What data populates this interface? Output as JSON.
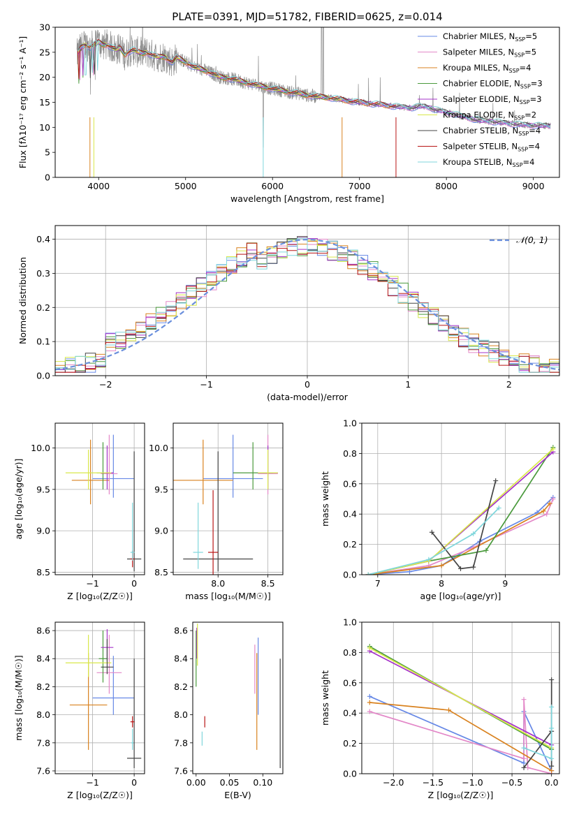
{
  "figure": {
    "title": "PLATE=0391, MJD=51782, FIBERID=0625, z=0.014"
  },
  "chart_data": [
    {
      "id": "spectrum",
      "type": "line",
      "xlabel": "wavelength [Angstrom, rest frame]",
      "ylabel": "Flux [fλ10⁻¹⁷ erg cm⁻² s⁻¹ A⁻¹]",
      "xlim": [
        3500,
        9300
      ],
      "ylim": [
        0,
        30
      ],
      "xticks": [
        "4000",
        "5000",
        "6000",
        "7000",
        "8000",
        "9000"
      ],
      "yticks": [
        "0",
        "5",
        "10",
        "15",
        "20",
        "25",
        "30"
      ],
      "grid": false,
      "legend_position": "top-right",
      "legend": [
        {
          "label": "Chabrier MILES, N",
          "sub": "SSP",
          "tail": "=5",
          "color": "#6688e6"
        },
        {
          "label": "Salpeter MILES, N",
          "sub": "SSP",
          "tail": "=5",
          "color": "#e388c8"
        },
        {
          "label": "Kroupa MILES, N",
          "sub": "SSP",
          "tail": "=4",
          "color": "#d9821f"
        },
        {
          "label": "Chabrier ELODIE, N",
          "sub": "SSP",
          "tail": "=3",
          "color": "#4a9a3c"
        },
        {
          "label": "Salpeter ELODIE, N",
          "sub": "SSP",
          "tail": "=3",
          "color": "#a533c8"
        },
        {
          "label": "Kroupa ELODIE, N",
          "sub": "SSP",
          "tail": "=2",
          "color": "#d9e84a"
        },
        {
          "label": "Chabrier STELIB, N",
          "sub": "SSP",
          "tail": "=4",
          "color": "#444444"
        },
        {
          "label": "Salpeter STELIB, N",
          "sub": "SSP",
          "tail": "=4",
          "color": "#b81414"
        },
        {
          "label": "Kroupa STELIB, N",
          "sub": "SSP",
          "tail": "=4",
          "color": "#7fd6dc"
        }
      ],
      "observed": {
        "color": "#8c8c8c",
        "x": [
          3750,
          3800,
          3850,
          3900,
          3950,
          4000,
          4050,
          4100,
          4150,
          4200,
          4250,
          4300,
          4350,
          4400,
          4450,
          4500,
          4550,
          4600,
          4650,
          4700,
          4750,
          4800,
          4850,
          4900,
          5000,
          5100,
          5200,
          5300,
          5400,
          5500,
          5600,
          5700,
          5800,
          5900,
          6000,
          6100,
          6200,
          6300,
          6400,
          6500,
          6600,
          6700,
          6800,
          6900,
          7000,
          7100,
          7200,
          7300,
          7400,
          7500,
          7600,
          7700,
          7800,
          7900,
          8000,
          8100,
          8200,
          8300,
          8400,
          8500,
          8600,
          8700,
          8800,
          8900,
          9000,
          9100,
          9200
        ],
        "y": [
          24.5,
          26.0,
          26.5,
          26.0,
          26.5,
          27.0,
          26.5,
          26.5,
          26.0,
          25.5,
          25.8,
          24.5,
          25.2,
          25.5,
          25.0,
          24.8,
          25.0,
          24.6,
          24.2,
          24.0,
          24.2,
          23.6,
          23.0,
          24.0,
          23.0,
          22.0,
          21.5,
          20.8,
          20.0,
          19.8,
          19.4,
          18.9,
          18.5,
          18.1,
          17.7,
          17.4,
          17.0,
          16.8,
          16.4,
          16.2,
          16.0,
          15.8,
          15.5,
          15.2,
          15.0,
          14.8,
          14.6,
          14.4,
          14.2,
          14.0,
          13.9,
          14.2,
          14.0,
          13.4,
          13.0,
          12.6,
          12.1,
          11.7,
          11.3,
          11.2,
          11.0,
          10.8,
          10.6,
          10.5,
          10.4,
          10.3,
          10.3
        ]
      }
    },
    {
      "id": "residuals",
      "type": "bar",
      "xlabel": "(data-model)/error",
      "ylabel": "Normed distribution",
      "xlim": [
        -2.5,
        2.5
      ],
      "ylim": [
        0,
        0.44
      ],
      "xticks": [
        "−2",
        "−1",
        "0",
        "1",
        "2"
      ],
      "yticks": [
        "0.0",
        "0.1",
        "0.2",
        "0.3",
        "0.4"
      ],
      "grid": true,
      "legend_position": "top-right",
      "reference_label": "𝒩(0, 1)",
      "reference_color": "#6a8fdc"
    },
    {
      "id": "age_vs_Z",
      "type": "scatter",
      "xlabel": "Z [log₁₀(Z/Z☉)]",
      "ylabel": "age  [log₁₀(age/yr)]",
      "xlim": [
        -1.9,
        0.25
      ],
      "ylim": [
        8.47,
        10.3
      ],
      "xticks": [
        "−1",
        "0"
      ],
      "yticks": [
        "8.5",
        "9.0",
        "9.5",
        "10.0"
      ],
      "grid": true,
      "points": [
        {
          "x": -0.5,
          "y": 9.63,
          "xerr": [
            0.5,
            0.5
          ],
          "yerr": [
            0.23,
            0.53
          ],
          "color": "#6688e6"
        },
        {
          "x": -0.6,
          "y": 9.69,
          "xerr": [
            0.2,
            0.2
          ],
          "yerr": [
            0.25,
            0.47
          ],
          "color": "#e388c8"
        },
        {
          "x": -1.05,
          "y": 9.61,
          "xerr": [
            0.45,
            0.45
          ],
          "yerr": [
            0.29,
            0.49
          ],
          "color": "#d9821f"
        },
        {
          "x": -0.75,
          "y": 9.7,
          "xerr": [
            0.15,
            0.15
          ],
          "yerr": [
            0.2,
            0.37
          ],
          "color": "#4a9a3c"
        },
        {
          "x": -0.65,
          "y": 9.7,
          "xerr": [
            0.15,
            0.15
          ],
          "yerr": [
            0.2,
            0.33
          ],
          "color": "#a533c8"
        },
        {
          "x": -1.1,
          "y": 9.7,
          "xerr": [
            0.55,
            0.55
          ],
          "yerr": [
            0.2,
            0.28
          ],
          "color": "#d9e84a"
        },
        {
          "x": 0.0,
          "y": 8.66,
          "xerr": [
            0.17,
            0.17
          ],
          "yerr": [
            0.15,
            1.3
          ],
          "color": "#444444"
        },
        {
          "x": -0.04,
          "y": 8.66,
          "xerr": [
            0.05,
            0.05
          ],
          "yerr": [
            0.1,
            0.1
          ],
          "color": "#b81414"
        },
        {
          "x": -0.04,
          "y": 8.74,
          "xerr": [
            0.05,
            0.05
          ],
          "yerr": [
            0.1,
            0.6
          ],
          "color": "#7fd6dc"
        }
      ]
    },
    {
      "id": "age_vs_mass",
      "type": "scatter",
      "xlabel": "mass [log₁₀(M/M☉)]",
      "ylabel": "",
      "xlim": [
        7.55,
        8.65
      ],
      "ylim": [
        8.47,
        10.3
      ],
      "xticks": [
        "8.0",
        "8.5"
      ],
      "yticks": [
        "8.5",
        "9.0",
        "9.5",
        "10.0"
      ],
      "grid": true,
      "points": [
        {
          "x": 8.15,
          "y": 9.63,
          "xerr": [
            0.3,
            0.3
          ],
          "yerr": [
            0.23,
            0.53
          ],
          "color": "#6688e6"
        },
        {
          "x": 8.5,
          "y": 9.69,
          "xerr": [
            0.1,
            0.1
          ],
          "yerr": [
            0.25,
            0.47
          ],
          "color": "#e388c8"
        },
        {
          "x": 7.85,
          "y": 9.61,
          "xerr": [
            0.3,
            0.3
          ],
          "yerr": [
            0.29,
            0.49
          ],
          "color": "#d9821f"
        },
        {
          "x": 8.35,
          "y": 9.7,
          "xerr": [
            0.2,
            0.2
          ],
          "yerr": [
            0.2,
            0.37
          ],
          "color": "#4a9a3c"
        },
        {
          "x": 8.5,
          "y": 9.7,
          "xerr": [
            0.1,
            0.1
          ],
          "yerr": [
            0.2,
            0.33
          ],
          "color": "#a533c8"
        },
        {
          "x": 8.5,
          "y": 9.7,
          "xerr": [
            0.1,
            0.1
          ],
          "yerr": [
            0.2,
            0.28
          ],
          "color": "#d9e84a"
        },
        {
          "x": 8.0,
          "y": 8.66,
          "xerr": [
            0.35,
            0.35
          ],
          "yerr": [
            0.15,
            1.3
          ],
          "color": "#444444"
        },
        {
          "x": 7.95,
          "y": 8.74,
          "xerr": [
            0.05,
            0.05
          ],
          "yerr": [
            0.3,
            0.75
          ],
          "color": "#b81414"
        },
        {
          "x": 7.8,
          "y": 8.74,
          "xerr": [
            0.05,
            0.05
          ],
          "yerr": [
            0.2,
            0.6
          ],
          "color": "#7fd6dc"
        }
      ]
    },
    {
      "id": "weight_vs_age",
      "type": "line",
      "xlabel": "age  [log₁₀(age/yr)]",
      "ylabel": "mass weight",
      "xlim": [
        6.75,
        9.85
      ],
      "ylim": [
        0,
        1
      ],
      "xticks": [
        "7",
        "8",
        "9"
      ],
      "yticks": [
        "0.0",
        "0.2",
        "0.4",
        "0.6",
        "0.8",
        "1.0"
      ],
      "grid": true,
      "series": [
        {
          "color": "#6688e6",
          "x": [
            6.85,
            7.5,
            8.0,
            8.6,
            9.5,
            9.75
          ],
          "y": [
            0.0,
            0.02,
            0.06,
            0.22,
            0.41,
            0.51
          ]
        },
        {
          "color": "#e388c8",
          "x": [
            6.85,
            7.8,
            8.5,
            9.65,
            9.75
          ],
          "y": [
            0.0,
            0.06,
            0.18,
            0.4,
            0.5
          ]
        },
        {
          "color": "#d9821f",
          "x": [
            6.85,
            8.0,
            9.6,
            9.7
          ],
          "y": [
            0.0,
            0.06,
            0.42,
            0.47
          ]
        },
        {
          "color": "#4a9a3c",
          "x": [
            6.85,
            7.8,
            8.7,
            9.75
          ],
          "y": [
            0.0,
            0.09,
            0.16,
            0.84
          ]
        },
        {
          "color": "#a533c8",
          "x": [
            6.85,
            7.8,
            9.75
          ],
          "y": [
            0.0,
            0.09,
            0.81
          ]
        },
        {
          "color": "#d9e84a",
          "x": [
            6.85,
            7.8,
            9.75
          ],
          "y": [
            0.0,
            0.09,
            0.83
          ]
        },
        {
          "color": "#444444",
          "x": [
            7.85,
            8.3,
            8.5,
            8.85
          ],
          "y": [
            0.28,
            0.04,
            0.05,
            0.62
          ]
        },
        {
          "color": "#7fd6dc",
          "x": [
            6.85,
            7.8,
            8.5,
            8.9
          ],
          "y": [
            0.0,
            0.1,
            0.27,
            0.44
          ]
        }
      ]
    },
    {
      "id": "mass_vs_Z",
      "type": "scatter",
      "xlabel": "Z [log₁₀(Z/Z☉)]",
      "ylabel": "mass [log₁₀(M/M☉)]",
      "xlim": [
        -1.9,
        0.25
      ],
      "ylim": [
        7.58,
        8.66
      ],
      "xticks": [
        "−1",
        "0"
      ],
      "yticks": [
        "7.6",
        "7.8",
        "8.0",
        "8.2",
        "8.4",
        "8.6"
      ],
      "grid": true,
      "points": [
        {
          "x": -0.5,
          "y": 8.12,
          "xerr": [
            0.5,
            0.5
          ],
          "yerr": [
            0.12,
            0.3
          ],
          "color": "#6688e6"
        },
        {
          "x": -0.6,
          "y": 8.3,
          "xerr": [
            0.3,
            0.3
          ],
          "yerr": [
            0.15,
            0.27
          ],
          "color": "#e388c8"
        },
        {
          "x": -1.1,
          "y": 8.07,
          "xerr": [
            0.45,
            0.45
          ],
          "yerr": [
            0.32,
            0.37
          ],
          "color": "#d9821f"
        },
        {
          "x": -0.75,
          "y": 8.4,
          "xerr": [
            0.1,
            0.1
          ],
          "yerr": [
            0.17,
            0.2
          ],
          "color": "#4a9a3c"
        },
        {
          "x": -0.65,
          "y": 8.48,
          "xerr": [
            0.15,
            0.15
          ],
          "yerr": [
            0.1,
            0.13
          ],
          "color": "#a533c8"
        },
        {
          "x": -1.1,
          "y": 8.37,
          "xerr": [
            0.55,
            0.55
          ],
          "yerr": [
            0.1,
            0.2
          ],
          "color": "#d9e84a"
        },
        {
          "x": -0.65,
          "y": 8.34,
          "xerr": [
            0.15,
            0.15
          ],
          "yerr": [
            0.05,
            0.2
          ],
          "color": "#444444"
        },
        {
          "x": 0.0,
          "y": 7.69,
          "xerr": [
            0.17,
            0.17
          ],
          "yerr": [
            0.07,
            0.71
          ],
          "color": "#444444"
        },
        {
          "x": -0.04,
          "y": 7.95,
          "xerr": [
            0.05,
            0.05
          ],
          "yerr": [
            0.04,
            0.04
          ],
          "color": "#b81414"
        },
        {
          "x": -0.04,
          "y": 7.8,
          "xerr": [
            0.03,
            0.03
          ],
          "yerr": [
            0.05,
            0.1
          ],
          "color": "#7fd6dc"
        }
      ]
    },
    {
      "id": "mass_vs_ebv",
      "type": "scatter",
      "xlabel": "E(B-V)",
      "ylabel": "",
      "xlim": [
        -0.005,
        0.13
      ],
      "ylim": [
        7.58,
        8.66
      ],
      "xticks": [
        "0.00",
        "0.05",
        "0.10"
      ],
      "yticks": [
        "7.6",
        "7.8",
        "8.0",
        "8.2",
        "8.4",
        "8.6"
      ],
      "grid": false,
      "points": [
        {
          "x": 0.093,
          "y": 8.12,
          "xerr": [
            0,
            0
          ],
          "yerr": [
            0.12,
            0.43
          ],
          "color": "#6688e6"
        },
        {
          "x": 0.088,
          "y": 8.3,
          "xerr": [
            0,
            0
          ],
          "yerr": [
            0.15,
            0.2
          ],
          "color": "#e388c8"
        },
        {
          "x": 0.091,
          "y": 8.07,
          "xerr": [
            0,
            0
          ],
          "yerr": [
            0.32,
            0.37
          ],
          "color": "#d9821f"
        },
        {
          "x": 0.0,
          "y": 8.4,
          "xerr": [
            0,
            0
          ],
          "yerr": [
            0.2,
            0.2
          ],
          "color": "#4a9a3c"
        },
        {
          "x": 0.001,
          "y": 8.5,
          "xerr": [
            0,
            0
          ],
          "yerr": [
            0.1,
            0.12
          ],
          "color": "#a533c8"
        },
        {
          "x": 0.002,
          "y": 8.45,
          "xerr": [
            0,
            0
          ],
          "yerr": [
            0.1,
            0.2
          ],
          "color": "#d9e84a"
        },
        {
          "x": 0.126,
          "y": 8.0,
          "xerr": [
            0,
            0
          ],
          "yerr": [
            0.38,
            0.4
          ],
          "color": "#444444"
        },
        {
          "x": 0.013,
          "y": 7.95,
          "xerr": [
            0,
            0
          ],
          "yerr": [
            0.04,
            0.04
          ],
          "color": "#b81414"
        },
        {
          "x": 0.009,
          "y": 7.83,
          "xerr": [
            0,
            0
          ],
          "yerr": [
            0.05,
            0.05
          ],
          "color": "#7fd6dc"
        }
      ]
    },
    {
      "id": "weight_vs_Z",
      "type": "line",
      "xlabel": "Z [log₁₀(Z/Z☉)]",
      "ylabel": "mass weight",
      "xlim": [
        -2.4,
        0.1
      ],
      "ylim": [
        0,
        1
      ],
      "xticks": [
        "−2.0",
        "−1.5",
        "−1.0",
        "−0.5",
        "0.0"
      ],
      "yticks": [
        "0.0",
        "0.2",
        "0.4",
        "0.6",
        "0.8",
        "1.0"
      ],
      "grid": true,
      "series": [
        {
          "color": "#6688e6",
          "x": [
            -2.3,
            -0.35,
            -0.35,
            0.0
          ],
          "y": [
            0.51,
            0.07,
            0.41,
            0.02
          ]
        },
        {
          "color": "#e388c8",
          "x": [
            -2.3,
            -0.35,
            -0.35,
            -0.3,
            0.0
          ],
          "y": [
            0.41,
            0.1,
            0.49,
            0.04,
            0.0
          ]
        },
        {
          "color": "#d9821f",
          "x": [
            -2.3,
            -1.3,
            0.0
          ],
          "y": [
            0.47,
            0.42,
            0.02
          ]
        },
        {
          "color": "#4a9a3c",
          "x": [
            -2.3,
            0.0
          ],
          "y": [
            0.84,
            0.16
          ]
        },
        {
          "color": "#a533c8",
          "x": [
            -2.3,
            0.0
          ],
          "y": [
            0.81,
            0.19
          ]
        },
        {
          "color": "#d9e84a",
          "x": [
            -2.3,
            0.0
          ],
          "y": [
            0.83,
            0.17
          ]
        },
        {
          "color": "#444444",
          "x": [
            -0.35,
            0.0,
            0.0,
            0.0
          ],
          "y": [
            0.04,
            0.28,
            0.62,
            0.05
          ]
        },
        {
          "color": "#7fd6dc",
          "x": [
            -0.35,
            0.0,
            0.0,
            0.0
          ],
          "y": [
            0.17,
            0.1,
            0.44,
            0.3
          ]
        }
      ]
    }
  ]
}
